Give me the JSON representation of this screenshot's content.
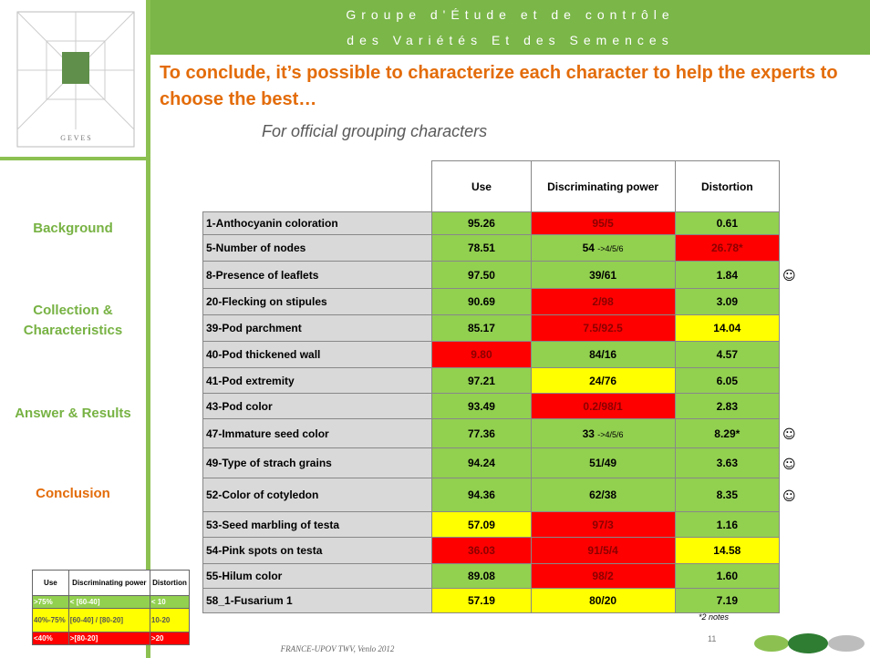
{
  "header": {
    "line1": "Groupe d'Étude et de contrôle",
    "line2": "des Variétés Et des Semences"
  },
  "logo_text": "G E V E S",
  "title": "To conclude, it’s possible to characterize each character to help the experts to choose the best…",
  "subtitle": "For official grouping characters",
  "nav": [
    {
      "label": "Background",
      "active": false
    },
    {
      "label": "Collection & Characteristics",
      "active": false
    },
    {
      "label": "Answer & Results",
      "active": false
    },
    {
      "label": "Conclusion",
      "active": true
    }
  ],
  "table": {
    "columns": [
      "Use",
      "Discriminating power",
      "Distortion"
    ],
    "rows": [
      {
        "name": "1-Anthocyanin coloration",
        "use": "95.26",
        "dp": "95/5",
        "distortion": "0.61",
        "colors": [
          "green",
          "red",
          "green"
        ]
      },
      {
        "name": "5-Number of nodes",
        "use": "78.51",
        "dp": "54",
        "dp_note": "->4/5/6",
        "distortion": "26.78*",
        "colors": [
          "green",
          "green",
          "red"
        ]
      },
      {
        "name": "8-Presence of leaflets",
        "use": "97.50",
        "dp": "39/61",
        "distortion": "1.84",
        "colors": [
          "green",
          "green",
          "green"
        ],
        "mark": "☺"
      },
      {
        "name": "20-Flecking on stipules",
        "use": "90.69",
        "dp": "2/98",
        "distortion": "3.09",
        "colors": [
          "green",
          "red",
          "green"
        ]
      },
      {
        "name": "39-Pod parchment",
        "use": "85.17",
        "dp": "7.5/92.5",
        "distortion": "14.04",
        "colors": [
          "green",
          "red",
          "yellow"
        ]
      },
      {
        "name": "40-Pod thickened wall",
        "use": "9.80",
        "dp": "84/16",
        "distortion": "4.57",
        "colors": [
          "red",
          "green",
          "green"
        ]
      },
      {
        "name": "41-Pod extremity",
        "use": "97.21",
        "dp": "24/76",
        "distortion": "6.05",
        "colors": [
          "green",
          "yellow",
          "green"
        ]
      },
      {
        "name": "43-Pod color",
        "use": "93.49",
        "dp": "0.2/98/1",
        "distortion": "2.83",
        "colors": [
          "green",
          "red",
          "green"
        ]
      },
      {
        "name": "47-Immature seed color",
        "use": "77.36",
        "dp": "33",
        "dp_note": "->4/5/6",
        "distortion": "8.29*",
        "colors": [
          "green",
          "green",
          "green"
        ],
        "mark": "☺"
      },
      {
        "name": "49-Type of strach grains",
        "use": "94.24",
        "dp": "51/49",
        "distortion": "3.63",
        "colors": [
          "green",
          "green",
          "green"
        ],
        "mark": "☺"
      },
      {
        "name": "52-Color of cotyledon",
        "use": "94.36",
        "dp": "62/38",
        "distortion": "8.35",
        "colors": [
          "green",
          "green",
          "green"
        ],
        "mark": "☺"
      },
      {
        "name": "53-Seed marbling of testa",
        "use": "57.09",
        "dp": "97/3",
        "distortion": "1.16",
        "colors": [
          "yellow",
          "red",
          "green"
        ]
      },
      {
        "name": "54-Pink spots on testa",
        "use": "36.03",
        "dp": "91/5/4",
        "distortion": "14.58",
        "colors": [
          "red",
          "red",
          "yellow"
        ]
      },
      {
        "name": "55-Hilum color",
        "use": "89.08",
        "dp": "98/2",
        "distortion": "1.60",
        "colors": [
          "green",
          "red",
          "green"
        ]
      },
      {
        "name": "58_1-Fusarium 1",
        "use": "57.19",
        "dp": "80/20",
        "distortion": "7.19",
        "colors": [
          "yellow",
          "yellow",
          "green"
        ]
      }
    ]
  },
  "legend": {
    "columns": [
      "Use",
      "Discriminating power",
      "Distortion"
    ],
    "rows": [
      {
        "cells": [
          ">75%",
          "< [60-40]",
          "< 10"
        ],
        "color": "green"
      },
      {
        "cells": [
          "40%-75%",
          "[60-40] / [80-20]",
          "10-20"
        ],
        "color": "yellow"
      },
      {
        "cells": [
          "<40%",
          ">[80-20]",
          ">20"
        ],
        "color": "red"
      }
    ]
  },
  "footnote": "*2 notes",
  "page_number": "11",
  "footer": "FRANCE-UPOV TWV, Venlo 2012"
}
